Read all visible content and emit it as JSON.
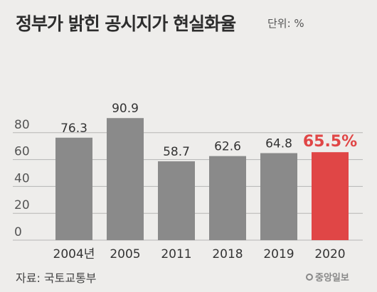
{
  "chart_data": {
    "type": "bar",
    "title": "정부가 밝힌 공시지가 현실화율",
    "unit_label": "단위: %",
    "categories": [
      "2004년",
      "2005",
      "2011",
      "2018",
      "2019",
      "2020"
    ],
    "values": [
      76.3,
      90.9,
      58.7,
      62.6,
      64.8,
      65.5
    ],
    "value_labels": [
      "76.3",
      "90.9",
      "58.7",
      "62.6",
      "64.8",
      "65.5%"
    ],
    "y_ticks": [
      0,
      20,
      40,
      60,
      80
    ],
    "ylim": [
      0,
      100
    ],
    "grid": true,
    "highlight_index": 5,
    "colors": {
      "bar": "#8a8a8a",
      "highlight": "#e04646",
      "label": "#333333",
      "highlight_label": "#e04646",
      "grid": "#b5b5b5"
    }
  },
  "source": "자료: 국토교통부",
  "logo_text": "중앙일보"
}
